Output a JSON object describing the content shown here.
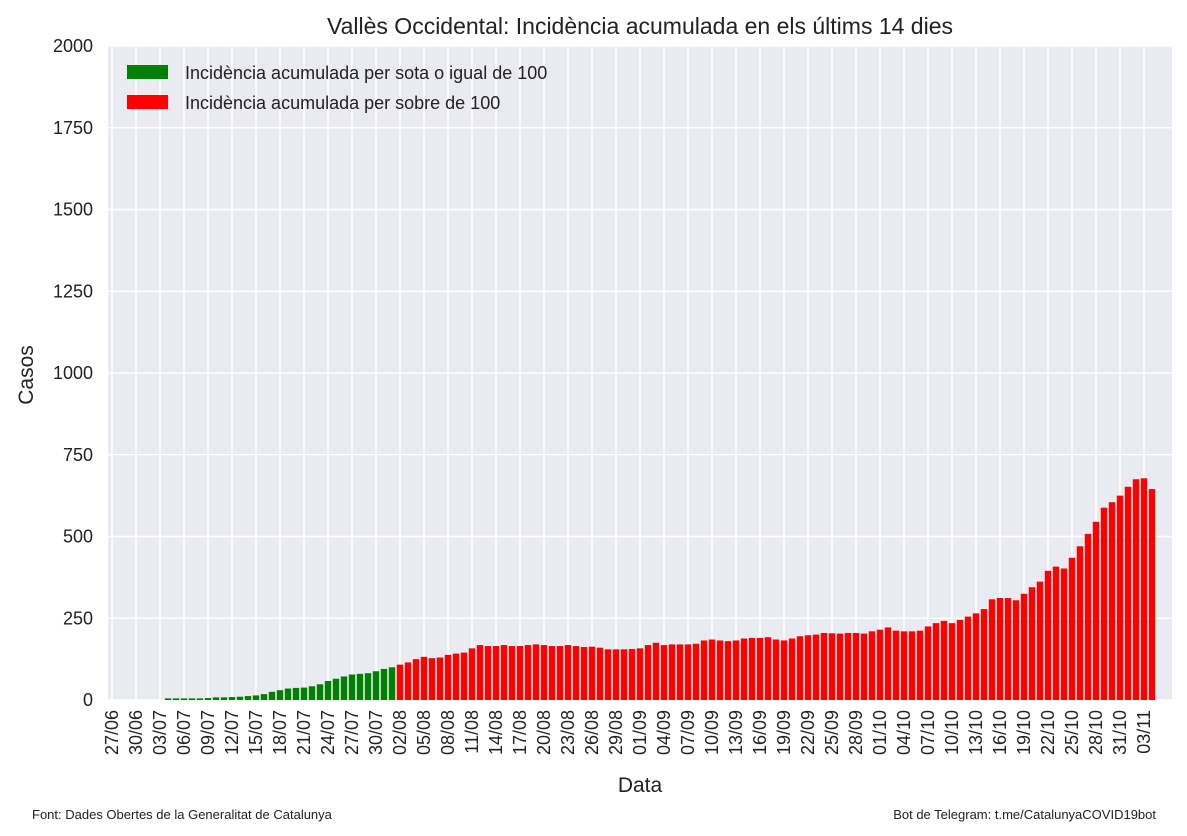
{
  "chart_data": {
    "type": "bar",
    "title": "Vallès Occidental: Incidència acumulada en els últims 14 dies",
    "xlabel": "Data",
    "ylabel": "Casos",
    "ylim": [
      0,
      2000
    ],
    "yticks": [
      0,
      250,
      500,
      750,
      1000,
      1250,
      1500,
      1750,
      2000
    ],
    "grid": true,
    "legend_position": "top-left",
    "x_start": "2020-06-27",
    "x_end": "2020-11-03",
    "xticks": [
      "27/06",
      "30/06",
      "03/07",
      "06/07",
      "09/07",
      "12/07",
      "15/07",
      "18/07",
      "21/07",
      "24/07",
      "27/07",
      "30/07",
      "02/08",
      "05/08",
      "08/08",
      "11/08",
      "14/08",
      "17/08",
      "20/08",
      "23/08",
      "26/08",
      "29/08",
      "01/09",
      "04/09",
      "07/09",
      "10/09",
      "13/09",
      "16/09",
      "19/09",
      "22/09",
      "25/09",
      "28/09",
      "01/10",
      "04/10",
      "07/10",
      "10/10",
      "13/10",
      "16/10",
      "19/10",
      "22/10",
      "25/10",
      "28/10",
      "31/10",
      "03/11"
    ],
    "threshold": 100,
    "series": [
      {
        "name": "Incidència acumulada per sota o igual de 100",
        "color": "#008000"
      },
      {
        "name": "Incidència acumulada per sobre de 100",
        "color": "#ff0000"
      }
    ],
    "start_date": "2020-07-03",
    "values": [
      0,
      5,
      5,
      5,
      5,
      5,
      6,
      8,
      8,
      9,
      10,
      12,
      14,
      18,
      25,
      30,
      35,
      37,
      38,
      42,
      48,
      58,
      65,
      72,
      78,
      80,
      82,
      88,
      95,
      100,
      108,
      115,
      125,
      132,
      128,
      130,
      138,
      142,
      145,
      158,
      168,
      165,
      165,
      168,
      165,
      165,
      168,
      170,
      168,
      165,
      165,
      168,
      165,
      162,
      163,
      160,
      155,
      155,
      155,
      156,
      158,
      168,
      175,
      168,
      170,
      170,
      170,
      172,
      182,
      185,
      182,
      180,
      182,
      188,
      190,
      190,
      192,
      185,
      182,
      188,
      195,
      198,
      200,
      205,
      204,
      203,
      205,
      205,
      203,
      210,
      215,
      222,
      212,
      210,
      210,
      212,
      225,
      235,
      242,
      235,
      245,
      255,
      265,
      278,
      308,
      312,
      312,
      305,
      325,
      345,
      362,
      395,
      408,
      402,
      435,
      470,
      508,
      545,
      588,
      605,
      625,
      652,
      675,
      678,
      645
    ]
  },
  "footer": {
    "source": "Font: Dades Obertes de la Generalitat de Catalunya",
    "bot": "Bot de Telegram: t.me/CatalunyaCOVID19bot"
  }
}
